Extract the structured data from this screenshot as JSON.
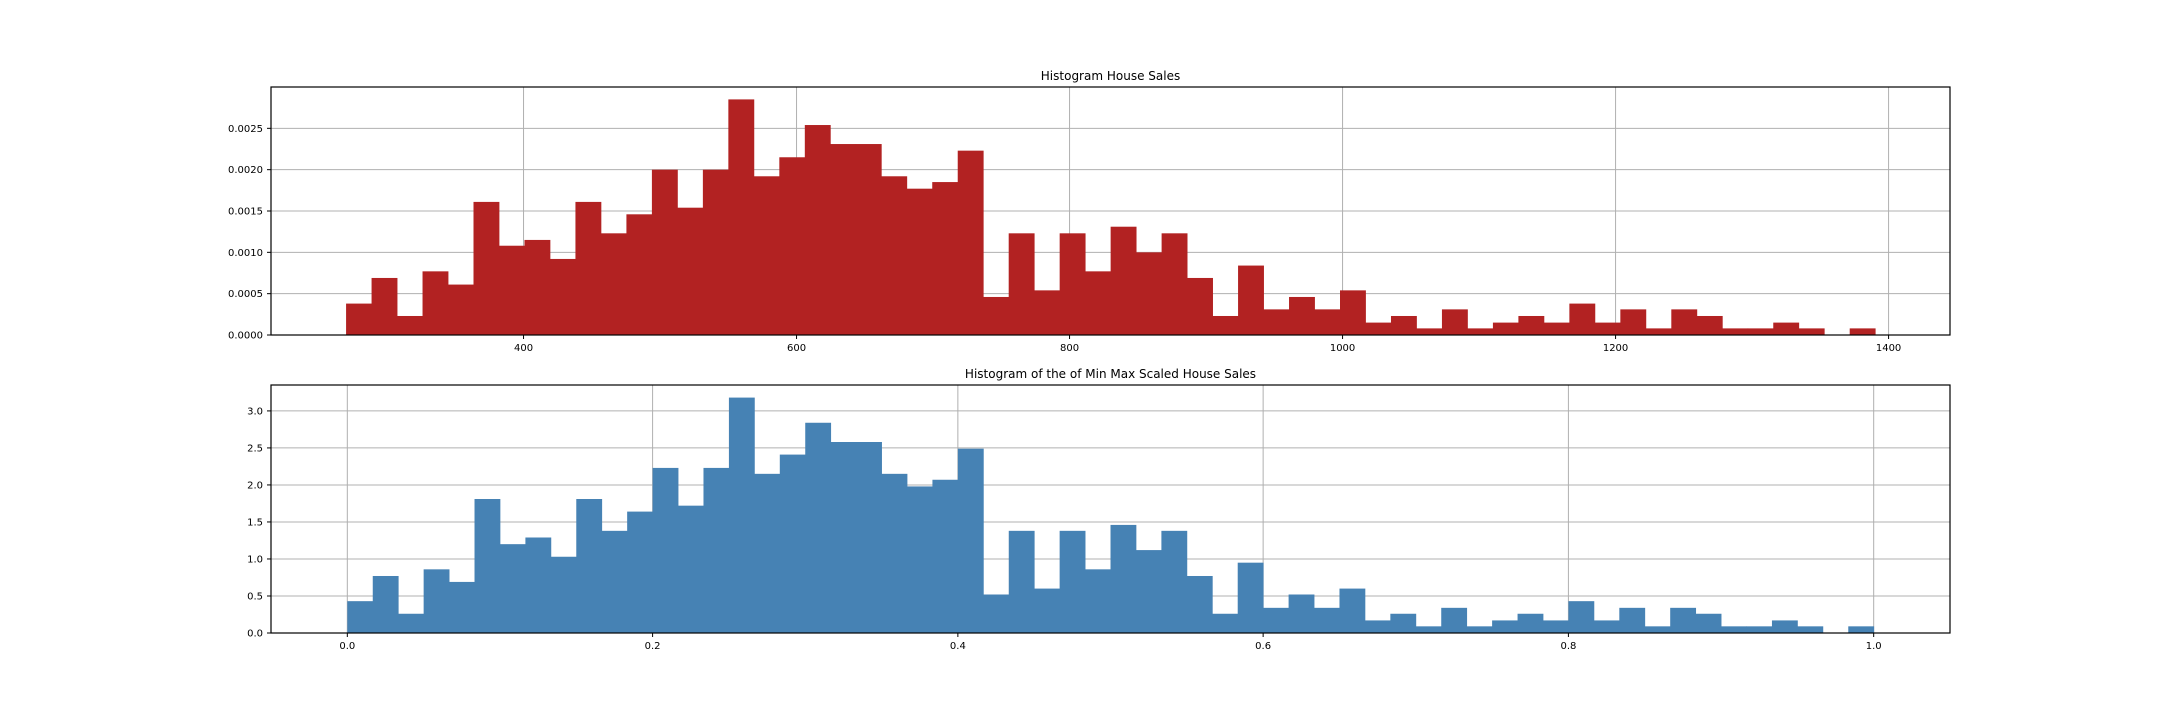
{
  "chart_data": [
    {
      "type": "bar",
      "title": "Histogram House Sales",
      "xlabel": "",
      "ylabel": "",
      "grid": true,
      "color": "#b22222",
      "xlim": [
        215,
        1445
      ],
      "ylim": [
        0,
        0.003
      ],
      "xticks": [
        400,
        600,
        800,
        1000,
        1200,
        1400
      ],
      "xtick_labels": [
        "400",
        "600",
        "800",
        "1000",
        "1200",
        "1400"
      ],
      "yticks": [
        0,
        0.0005,
        0.001,
        0.0015,
        0.002,
        0.0025
      ],
      "ytick_labels": [
        "0.0000",
        "0.0005",
        "0.0010",
        "0.0015",
        "0.0020",
        "0.0025"
      ],
      "bin_start": 270,
      "bin_width": 18.67,
      "values": [
        0.00038,
        0.00069,
        0.00023,
        0.00077,
        0.00061,
        0.00161,
        0.00108,
        0.00115,
        0.00092,
        0.00161,
        0.00123,
        0.00146,
        0.002,
        0.00154,
        0.002,
        0.00285,
        0.00192,
        0.00215,
        0.00254,
        0.00231,
        0.00231,
        0.00192,
        0.00177,
        0.00185,
        0.00223,
        0.00046,
        0.00123,
        0.00054,
        0.00123,
        0.00077,
        0.00131,
        0.001,
        0.00123,
        0.00069,
        0.00023,
        0.00084,
        0.00031,
        0.00046,
        0.00031,
        0.00054,
        0.00015,
        0.00023,
        8e-05,
        0.00031,
        8e-05,
        0.00015,
        0.00023,
        0.00015,
        0.00038,
        0.00015,
        0.00031,
        8e-05,
        0.00031,
        0.00023,
        8e-05,
        8e-05,
        0.00015,
        8e-05,
        0,
        8e-05
      ]
    },
    {
      "type": "bar",
      "title": "Histogram of the of Min Max Scaled House Sales",
      "xlabel": "",
      "ylabel": "",
      "grid": true,
      "color": "#4682b4",
      "xlim": [
        -0.05,
        1.05
      ],
      "ylim": [
        0,
        3.35
      ],
      "xticks": [
        0,
        0.2,
        0.4,
        0.6,
        0.8,
        1.0
      ],
      "xtick_labels": [
        "0.0",
        "0.2",
        "0.4",
        "0.6",
        "0.8",
        "1.0"
      ],
      "yticks": [
        0,
        0.5,
        1.0,
        1.5,
        2.0,
        2.5,
        3.0
      ],
      "ytick_labels": [
        "0.0",
        "0.5",
        "1.0",
        "1.5",
        "2.0",
        "2.5",
        "3.0"
      ],
      "bin_start": 0,
      "bin_width": 0.016667,
      "values": [
        0.43,
        0.77,
        0.26,
        0.86,
        0.69,
        1.81,
        1.2,
        1.29,
        1.03,
        1.81,
        1.38,
        1.64,
        2.23,
        1.72,
        2.23,
        3.18,
        2.15,
        2.41,
        2.84,
        2.58,
        2.58,
        2.15,
        1.98,
        2.07,
        2.49,
        0.52,
        1.38,
        0.6,
        1.38,
        0.86,
        1.46,
        1.12,
        1.38,
        0.77,
        0.26,
        0.95,
        0.34,
        0.52,
        0.34,
        0.6,
        0.17,
        0.26,
        0.09,
        0.34,
        0.09,
        0.17,
        0.26,
        0.17,
        0.43,
        0.17,
        0.34,
        0.09,
        0.34,
        0.26,
        0.09,
        0.09,
        0.17,
        0.09,
        0,
        0.09
      ]
    }
  ]
}
